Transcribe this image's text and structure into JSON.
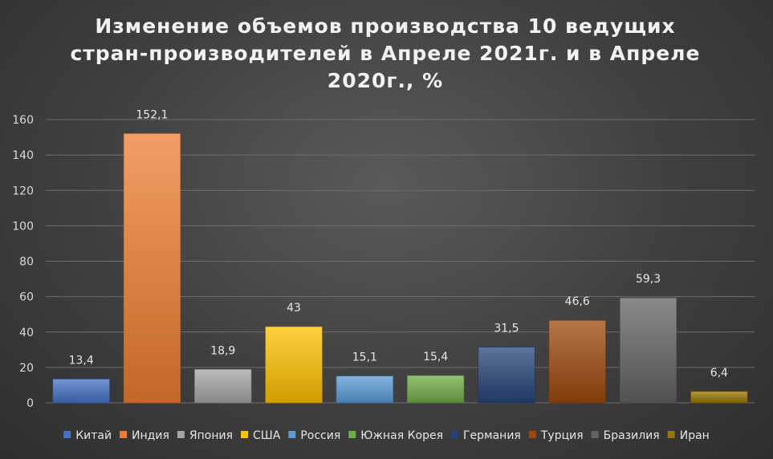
{
  "chart_data": {
    "type": "bar",
    "title": "Изменение объемов производства 10 ведущих стран-производителей в Апреле 2021г. и в Апреле 2020г., %",
    "categories": [
      "Китай",
      "Индия",
      "Япония",
      "США",
      "Россия",
      "Южная Корея",
      "Германия",
      "Турция",
      "Бразилия",
      "Иран"
    ],
    "values": [
      13.4,
      152.1,
      18.9,
      43,
      15.1,
      15.4,
      31.5,
      46.6,
      59.3,
      6.4
    ],
    "value_labels": [
      "13,4",
      "152,1",
      "18,9",
      "43",
      "15,1",
      "15,4",
      "31,5",
      "46,6",
      "59,3",
      "6,4"
    ],
    "colors": [
      "#4472C4",
      "#ED7D31",
      "#A5A5A5",
      "#FFC000",
      "#5B9BD5",
      "#70AD47",
      "#264478",
      "#9E480E",
      "#636363",
      "#997300"
    ],
    "ylim": [
      0,
      160
    ],
    "yticks": [
      "0",
      "20",
      "40",
      "60",
      "80",
      "100",
      "120",
      "140",
      "160"
    ],
    "grid": true,
    "legend_position": "bottom",
    "xlabel": "",
    "ylabel": ""
  }
}
